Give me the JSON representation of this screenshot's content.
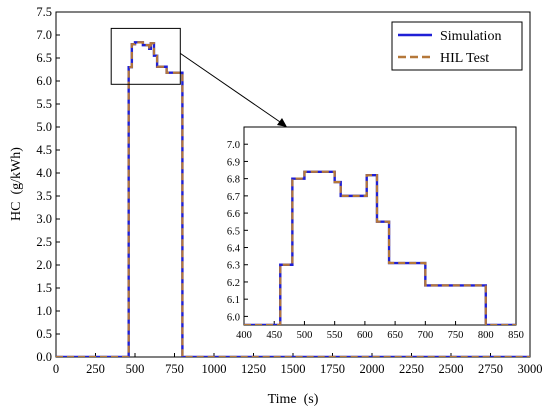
{
  "chart_data": [
    {
      "type": "line",
      "title": "",
      "xlabel": "Time (s)",
      "ylabel": "HC (g/kWh)",
      "xlim": [
        0,
        3000
      ],
      "ylim": [
        0,
        7.5
      ],
      "xticks": [
        "0",
        "250",
        "500",
        "750",
        "1000",
        "1250",
        "1500",
        "1750",
        "2000",
        "2250",
        "2500",
        "2750",
        "3000"
      ],
      "yticks": [
        "0.0",
        "0.5",
        "1.0",
        "1.5",
        "2.0",
        "2.5",
        "3.0",
        "3.5",
        "4.0",
        "4.5",
        "5.0",
        "5.5",
        "6.0",
        "6.5",
        "7.0",
        "7.5"
      ],
      "grid": false,
      "legend": "top-right",
      "series": [
        {
          "name": "Simulation",
          "color": "#1f1fd6",
          "style": "solid",
          "x": [
            0,
            460,
            460,
            480,
            480,
            500,
            500,
            550,
            550,
            590,
            590,
            600,
            600,
            620,
            620,
            640,
            640,
            700,
            700,
            800,
            800,
            3000
          ],
          "y": [
            0,
            0,
            6.3,
            6.3,
            6.8,
            6.8,
            6.84,
            6.84,
            6.78,
            6.78,
            6.7,
            6.7,
            6.82,
            6.82,
            6.55,
            6.55,
            6.31,
            6.31,
            6.18,
            6.18,
            0,
            0
          ]
        },
        {
          "name": "HIL Test",
          "color": "#b5783a",
          "style": "dash",
          "x": [
            0,
            460,
            460,
            480,
            480,
            500,
            500,
            550,
            550,
            590,
            590,
            600,
            600,
            620,
            620,
            640,
            640,
            700,
            700,
            800,
            800,
            3000
          ],
          "y": [
            0,
            0,
            6.3,
            6.3,
            6.8,
            6.8,
            6.84,
            6.84,
            6.78,
            6.78,
            6.7,
            6.7,
            6.82,
            6.82,
            6.55,
            6.55,
            6.31,
            6.31,
            6.18,
            6.18,
            0,
            0
          ]
        }
      ],
      "annotation": "zoom-box",
      "zoom_region": {
        "xlim": [
          400,
          850
        ],
        "ylim": [
          5.95,
          7.1
        ]
      }
    },
    {
      "type": "line",
      "title": "",
      "xlim": [
        400,
        850
      ],
      "ylim": [
        5.95,
        7.1
      ],
      "xticks": [
        "400",
        "450",
        "500",
        "550",
        "600",
        "650",
        "700",
        "750",
        "800",
        "850"
      ],
      "yticks": [
        "6.0",
        "6.1",
        "6.2",
        "6.3",
        "6.4",
        "6.5",
        "6.6",
        "6.7",
        "6.8",
        "6.9",
        "7.0"
      ],
      "grid": false,
      "series": [
        {
          "name": "Simulation",
          "color": "#1f1fd6",
          "style": "solid",
          "x": [
            400,
            460,
            460,
            475,
            475,
            480,
            480,
            500,
            500,
            550,
            550,
            560,
            560,
            590,
            590,
            603,
            603,
            620,
            620,
            624,
            624,
            640,
            640,
            700,
            700,
            800,
            800,
            850
          ],
          "y": [
            5.95,
            5.95,
            6.3,
            6.3,
            6.3,
            6.3,
            6.8,
            6.8,
            6.84,
            6.84,
            6.78,
            6.78,
            6.7,
            6.7,
            6.7,
            6.7,
            6.82,
            6.82,
            6.55,
            6.55,
            6.55,
            6.55,
            6.31,
            6.31,
            6.18,
            6.18,
            5.95,
            5.95
          ]
        },
        {
          "name": "HIL Test",
          "color": "#b5783a",
          "style": "dash",
          "x": [
            400,
            460,
            460,
            475,
            475,
            480,
            480,
            500,
            500,
            550,
            550,
            560,
            560,
            590,
            590,
            603,
            603,
            620,
            620,
            624,
            624,
            640,
            640,
            700,
            700,
            800,
            800,
            850
          ],
          "y": [
            5.95,
            5.95,
            6.3,
            6.3,
            6.3,
            6.3,
            6.8,
            6.8,
            6.84,
            6.84,
            6.78,
            6.78,
            6.7,
            6.7,
            6.7,
            6.7,
            6.82,
            6.82,
            6.55,
            6.55,
            6.55,
            6.55,
            6.31,
            6.31,
            6.18,
            6.18,
            5.95,
            5.95
          ]
        }
      ]
    }
  ]
}
